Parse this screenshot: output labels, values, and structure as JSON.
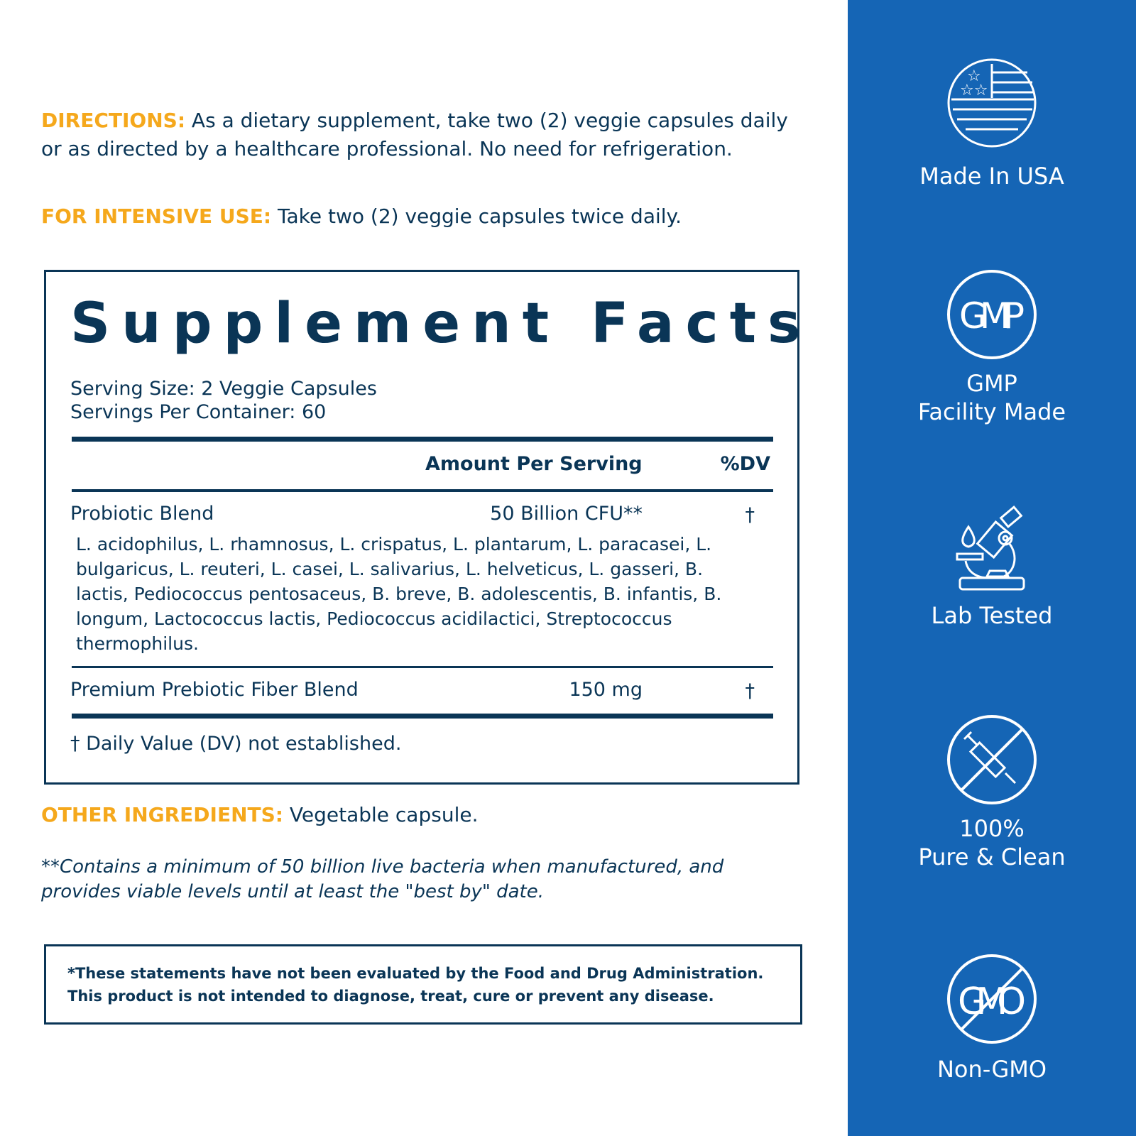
{
  "directions": {
    "label": "DIRECTIONS:",
    "text": "As a dietary supplement, take two (2) veggie capsules daily or as directed by a healthcare professional. No need for refrigeration."
  },
  "intensive": {
    "label": "FOR INTENSIVE USE:",
    "text": "Take two (2) veggie capsules twice daily."
  },
  "facts": {
    "title": "Supplement Facts",
    "serving_size": "Serving Size: 2 Veggie Capsules",
    "servings_per_container": "Servings Per Container: 60",
    "col_amount": "Amount Per Serving",
    "col_dv": "%DV",
    "rows": [
      {
        "name": "Probiotic Blend",
        "amount": "50 Billion CFU**",
        "dv": "†",
        "detail": "L. acidophilus, L. rhamnosus, L. crispatus, L. plantarum, L. paracasei, L. bulgaricus, L. reuteri, L. casei, L. salivarius, L. helveticus, L. gasseri, B. lactis, Pediococcus pentosaceus, B. breve, B. adolescentis, B. infantis, B. longum, Lactococcus lactis, Pediococcus acidilactici, Streptococcus thermophilus."
      },
      {
        "name": "Premium Prebiotic Fiber Blend",
        "amount": "150 mg",
        "dv": "†"
      }
    ],
    "footnote": "† Daily Value (DV) not established."
  },
  "other": {
    "label": "OTHER INGREDIENTS:",
    "text": "Vegetable capsule."
  },
  "note": "**Contains a minimum of 50 billion live bacteria when manufactured, and provides viable levels until at least the \"best by\" date.",
  "disclaimer": {
    "line1": "*These statements have not been evaluated by the Food and Drug Administration.",
    "line2": "This product is not intended to diagnose, treat, cure or prevent any disease."
  },
  "badges": [
    {
      "icon": "usa-flag-icon",
      "label": "Made In USA"
    },
    {
      "icon": "gmp-icon",
      "icon_text": "GMP",
      "label1": "GMP",
      "label2": "Facility Made"
    },
    {
      "icon": "microscope-icon",
      "label": "Lab Tested"
    },
    {
      "icon": "no-syringe-icon",
      "label1": "100%",
      "label2": "Pure & Clean"
    },
    {
      "icon": "no-gmo-icon",
      "icon_text": "GMO",
      "label": "Non-GMO"
    }
  ],
  "colors": {
    "navy": "#0a3556",
    "orange": "#f5a81c",
    "blue": "#1565b5"
  }
}
